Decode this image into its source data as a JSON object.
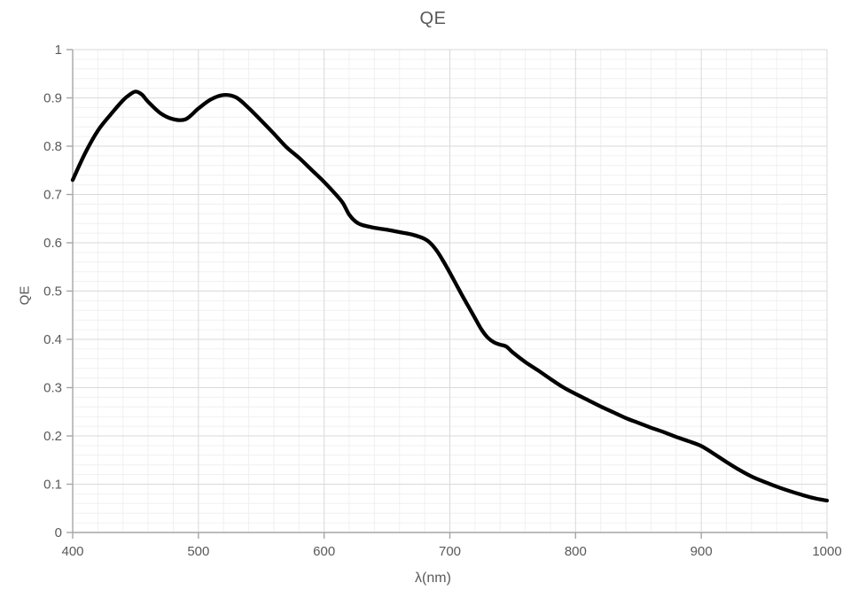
{
  "title": "QE",
  "colors": {
    "background": "#ffffff",
    "title_text": "#595959",
    "axis_text": "#595959",
    "axis_line": "#a6a6a6",
    "grid_major": "#d9d9d9",
    "grid_minor": "#f0f0f0",
    "series_line": "#000000"
  },
  "chart_data": {
    "type": "line",
    "title": "QE",
    "xlabel": "λ(nm)",
    "ylabel": "QE",
    "xlim": [
      400,
      1000
    ],
    "ylim": [
      0,
      1
    ],
    "x_major_unit": 100,
    "x_minor_unit": 20,
    "y_major_unit": 0.1,
    "y_minor_unit": 0.02,
    "grid": "major-and-minor",
    "legend_position": "none",
    "x_tick_labels": [
      "400",
      "500",
      "600",
      "700",
      "800",
      "900",
      "1000"
    ],
    "y_tick_labels": [
      "0",
      "0.1",
      "0.2",
      "0.3",
      "0.4",
      "0.5",
      "0.6",
      "0.7",
      "0.8",
      "0.9",
      "1"
    ],
    "series": [
      {
        "name": "QE",
        "color": "#000000",
        "stroke_width": 4.3,
        "x": [
          400,
          410,
          420,
          430,
          440,
          445,
          450,
          455,
          460,
          470,
          480,
          490,
          500,
          510,
          520,
          530,
          540,
          550,
          560,
          570,
          580,
          590,
          600,
          610,
          615,
          620,
          625,
          630,
          640,
          650,
          660,
          670,
          680,
          685,
          690,
          695,
          700,
          705,
          710,
          715,
          720,
          725,
          730,
          735,
          740,
          745,
          750,
          760,
          770,
          780,
          790,
          800,
          810,
          820,
          830,
          840,
          850,
          860,
          870,
          880,
          890,
          900,
          910,
          920,
          930,
          940,
          950,
          960,
          970,
          980,
          990,
          1000
        ],
        "y": [
          0.73,
          0.786,
          0.832,
          0.865,
          0.895,
          0.906,
          0.913,
          0.907,
          0.892,
          0.868,
          0.856,
          0.856,
          0.878,
          0.897,
          0.906,
          0.901,
          0.879,
          0.853,
          0.826,
          0.798,
          0.776,
          0.751,
          0.726,
          0.698,
          0.682,
          0.658,
          0.644,
          0.637,
          0.631,
          0.627,
          0.622,
          0.617,
          0.608,
          0.598,
          0.582,
          0.561,
          0.538,
          0.514,
          0.49,
          0.467,
          0.444,
          0.421,
          0.404,
          0.394,
          0.389,
          0.385,
          0.373,
          0.353,
          0.336,
          0.318,
          0.301,
          0.287,
          0.274,
          0.261,
          0.249,
          0.237,
          0.227,
          0.217,
          0.208,
          0.198,
          0.189,
          0.179,
          0.163,
          0.146,
          0.13,
          0.116,
          0.105,
          0.095,
          0.086,
          0.078,
          0.071,
          0.066
        ]
      }
    ]
  }
}
